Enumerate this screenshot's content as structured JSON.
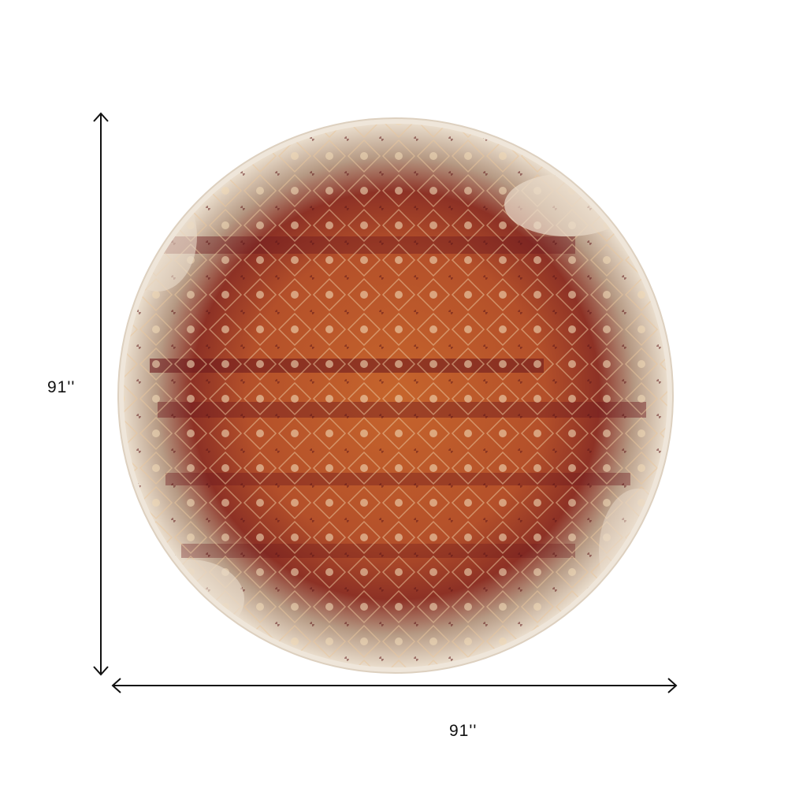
{
  "product": {
    "height_label": "91''",
    "width_label": "91''"
  },
  "colors": {
    "background": "#ffffff",
    "rug_border": "#efe6da",
    "rug_cream": "#e9dccb",
    "rug_orange": "#c2612a",
    "rug_rust": "#a9441f",
    "rug_maroon": "#6e1a1e",
    "rug_beige": "#cdb49a",
    "arrow": "#111111"
  }
}
